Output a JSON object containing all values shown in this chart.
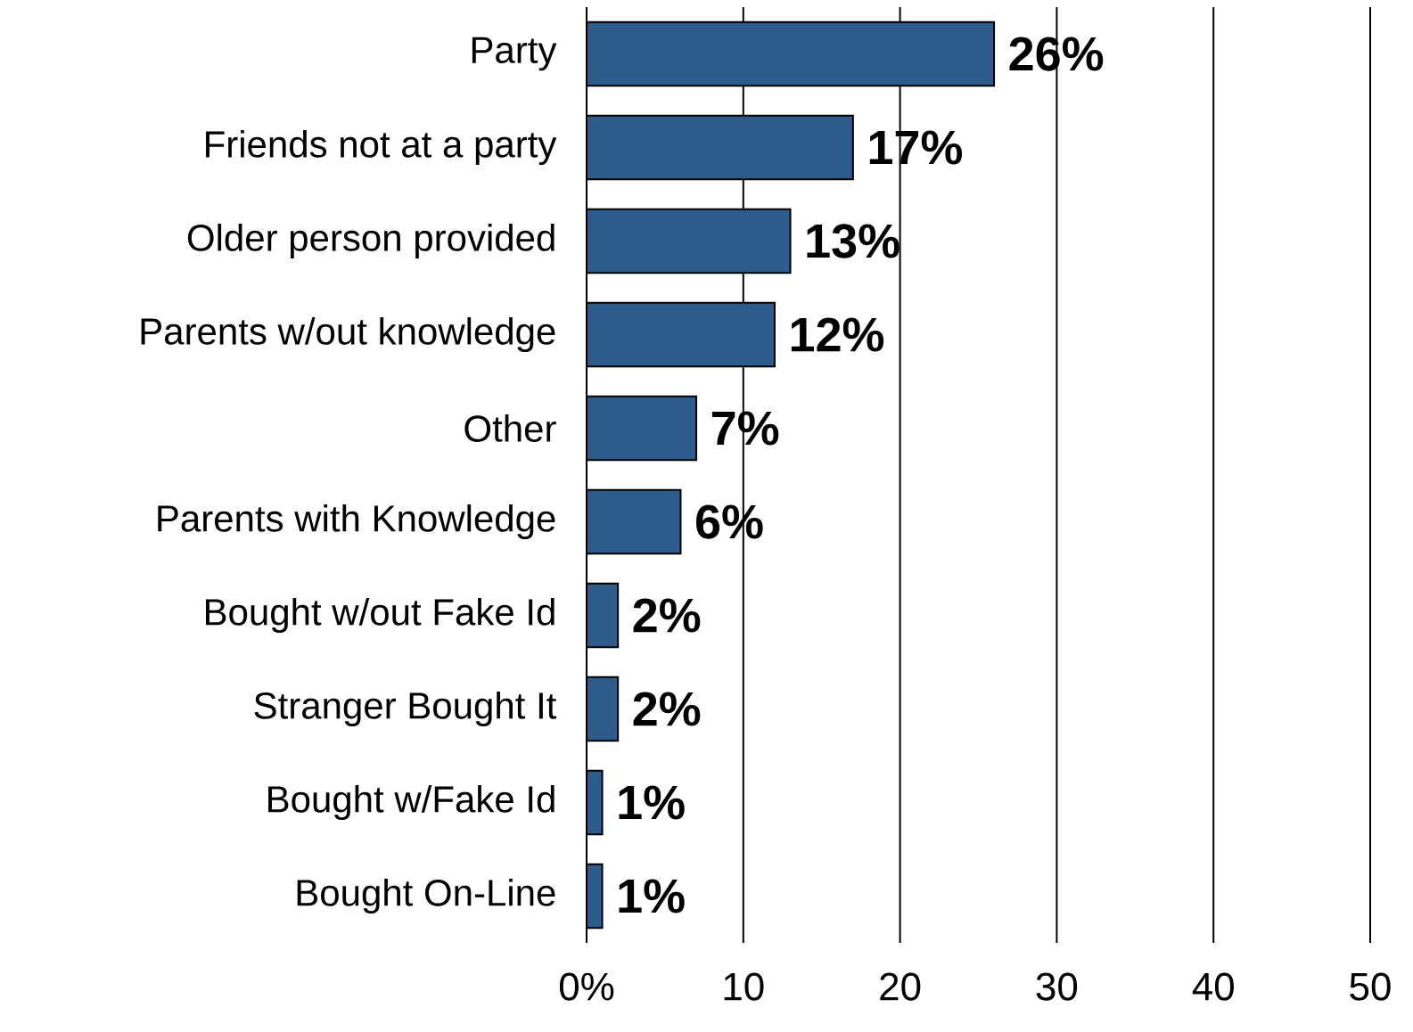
{
  "chart_data": {
    "type": "bar",
    "orientation": "horizontal",
    "categories": [
      "Party",
      "Friends not at a party",
      "Older person provided",
      "Parents w/out knowledge",
      "Other",
      "Parents with Knowledge",
      "Bought w/out Fake Id",
      "Stranger Bought It",
      "Bought w/Fake Id",
      "Bought On-Line"
    ],
    "values": [
      26,
      17,
      13,
      12,
      7,
      6,
      2,
      2,
      1,
      1
    ],
    "value_labels": [
      "26%",
      "17%",
      "13%",
      "12%",
      "7%",
      "6%",
      "2%",
      "2%",
      "1%",
      "1%"
    ],
    "color": "#2f5a8c",
    "xlim": [
      0,
      50
    ],
    "xticks": [
      {
        "value": 0,
        "label": "0%"
      },
      10,
      20,
      30,
      40,
      50
    ],
    "grid": "x"
  }
}
